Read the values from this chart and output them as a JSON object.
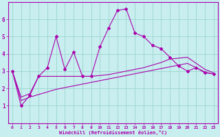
{
  "background_color": "#c8eef0",
  "grid_color": "#a0d8d0",
  "line_color": "#aa00aa",
  "xlabel": "Windchill (Refroidissement éolien,°C)",
  "xlabel_color": "#aa00aa",
  "xticks": [
    0,
    1,
    2,
    3,
    4,
    5,
    6,
    7,
    8,
    9,
    10,
    11,
    12,
    13,
    14,
    15,
    16,
    17,
    18,
    19,
    20,
    21,
    22,
    23
  ],
  "yticks": [
    1,
    2,
    3,
    4,
    5,
    6
  ],
  "xlim": [
    -0.5,
    23.5
  ],
  "ylim": [
    0,
    7.0
  ],
  "series1_x": [
    0,
    1,
    2,
    3,
    4,
    5,
    6,
    7,
    8,
    9,
    10,
    11,
    12,
    13,
    14,
    15,
    16,
    17,
    18,
    19,
    20,
    21,
    22,
    23
  ],
  "series1_y": [
    3.0,
    1.0,
    1.6,
    2.7,
    3.2,
    5.0,
    3.1,
    4.1,
    2.7,
    2.7,
    4.4,
    5.5,
    6.5,
    6.6,
    5.2,
    5.0,
    4.5,
    4.3,
    3.8,
    3.3,
    3.0,
    3.2,
    2.9,
    2.85
  ],
  "series2_x": [
    0,
    1,
    2,
    3,
    4,
    5,
    6,
    7,
    8,
    9,
    10,
    11,
    12,
    13,
    14,
    15,
    16,
    17,
    18,
    19,
    20,
    21,
    22,
    23
  ],
  "series2_y": [
    3.0,
    1.5,
    1.7,
    2.7,
    2.7,
    2.7,
    2.7,
    2.7,
    2.7,
    2.7,
    2.75,
    2.8,
    2.9,
    3.0,
    3.1,
    3.2,
    3.35,
    3.5,
    3.7,
    3.75,
    3.8,
    3.45,
    3.1,
    2.9
  ],
  "series3_x": [
    0,
    1,
    2,
    3,
    4,
    5,
    6,
    7,
    8,
    9,
    10,
    11,
    12,
    13,
    14,
    15,
    16,
    17,
    18,
    19,
    20,
    21,
    22,
    23
  ],
  "series3_y": [
    3.0,
    1.3,
    1.5,
    1.65,
    1.8,
    1.95,
    2.05,
    2.15,
    2.25,
    2.35,
    2.45,
    2.55,
    2.65,
    2.75,
    2.85,
    2.95,
    3.05,
    3.15,
    3.25,
    3.35,
    3.45,
    3.2,
    2.95,
    2.82
  ]
}
